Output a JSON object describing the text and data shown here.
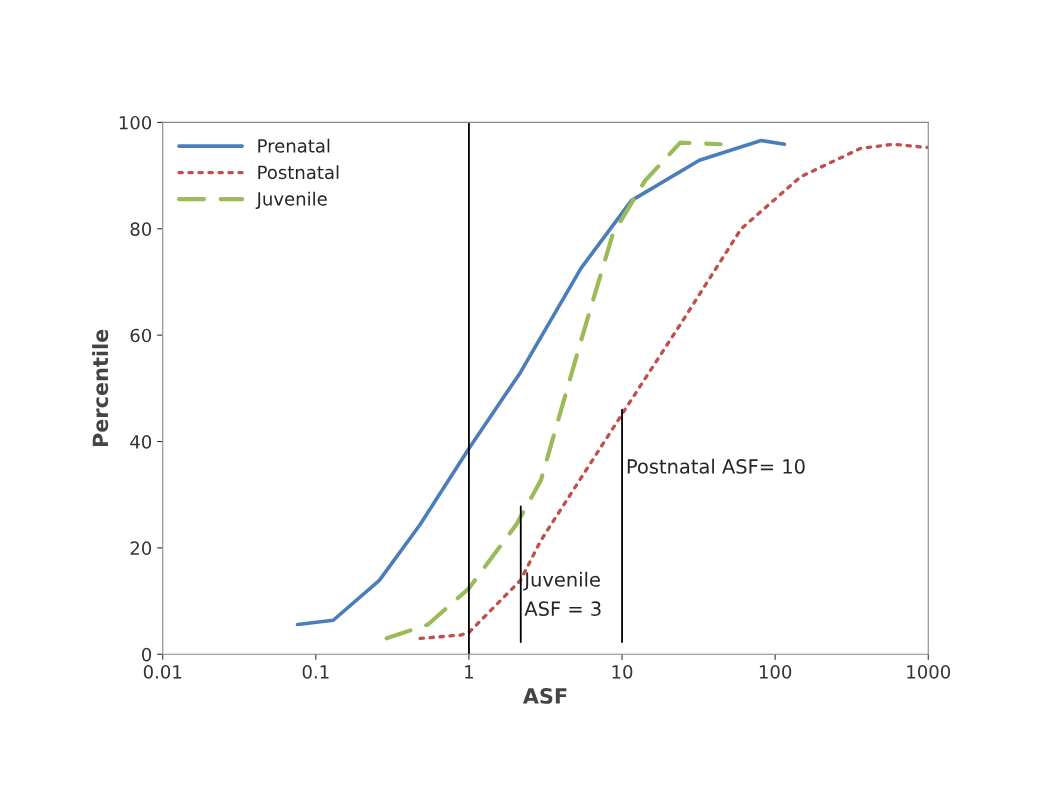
{
  "chart_data": {
    "type": "line",
    "xlabel": "ASF",
    "ylabel": "Percentile",
    "log": "x",
    "xlim": [
      0.01,
      1000
    ],
    "xticks": [
      0.01,
      0.1,
      1,
      10,
      100,
      1000
    ],
    "ylim": [
      0,
      100
    ],
    "yticks": [
      0,
      20,
      40,
      60,
      80,
      100
    ],
    "grid": false,
    "legend": "top left",
    "series": [
      {
        "name": "Prenatal",
        "color": "#4a7ebb",
        "line_style": "solid",
        "x": [
          0.076,
          0.13,
          0.26,
          0.48,
          1,
          2.17,
          5.4,
          11.5,
          32,
          81,
          115
        ],
        "values": [
          5.6,
          6.4,
          13.9,
          24.4,
          38.7,
          53,
          72.6,
          85.3,
          92.9,
          96.6,
          95.9
        ]
      },
      {
        "name": "Postnatal",
        "color": "#c0504d",
        "line_style": "dotted",
        "x": [
          0.48,
          0.88,
          1,
          2.17,
          2.95,
          11,
          24,
          60,
          147,
          360,
          590,
          980
        ],
        "values": [
          3.0,
          3.6,
          4.1,
          13.9,
          21.4,
          47,
          62,
          80,
          89.8,
          95.1,
          95.9,
          95.3
        ]
      },
      {
        "name": "Juvenile",
        "color": "#9bbb59",
        "line_style": "dashed",
        "x": [
          0.29,
          0.54,
          1,
          2.04,
          2.95,
          5.4,
          8.7,
          14.1,
          24,
          44
        ],
        "values": [
          3.0,
          5.6,
          12.4,
          24.4,
          32.7,
          59,
          79,
          89,
          96.2,
          95.9
        ]
      },
      {
        "color": "#000000",
        "line_style": "solid",
        "x": [
          2.18,
          2.18
        ],
        "values": [
          2.3,
          27.8
        ]
      },
      {
        "color": "#000000",
        "line_style": "solid",
        "x": [
          10,
          10
        ],
        "values": [
          2.3,
          46
        ]
      }
    ],
    "ref_lines": [
      {
        "axis": "x",
        "value": 1,
        "color": "#000000"
      }
    ],
    "annotations": [
      {
        "text": "Juvenile\nASF = 3",
        "x": 2.3,
        "y": 11
      },
      {
        "text": "Postnatal ASF= 10",
        "x": 10.6,
        "y": 35
      }
    ]
  }
}
